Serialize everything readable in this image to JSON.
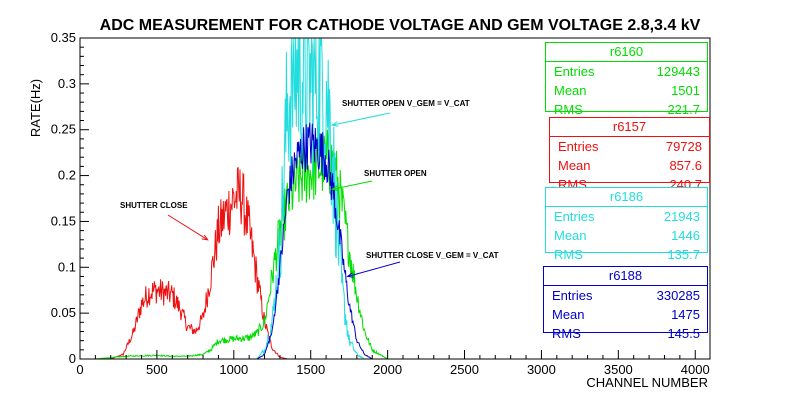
{
  "chart_data": {
    "type": "line",
    "title": "ADC MEASUREMENT FOR CATHODE VOLTAGE AND GEM VOLTAGE 2.8,3.4 kV",
    "xlabel": "CHANNEL NUMBER",
    "ylabel": "RATE(Hz)",
    "xlim": [
      0,
      4096
    ],
    "ylim": [
      0,
      0.35
    ],
    "x_ticks": [
      0,
      500,
      1000,
      1500,
      2000,
      2500,
      3000,
      3500,
      4000
    ],
    "x_tick_labels": [
      "0",
      "500",
      "1000",
      "1500",
      "2000",
      "2500",
      "3000",
      "3500",
      "4000"
    ],
    "y_ticks": [
      0,
      0.05,
      0.1,
      0.15,
      0.2,
      0.25,
      0.3,
      0.35
    ],
    "y_tick_labels": [
      "0",
      "0.05",
      "0.1",
      "0.15",
      "0.2",
      "0.25",
      "0.3",
      "0.35"
    ],
    "grid": false,
    "series": [
      {
        "name": "r6160",
        "color": "#00dd00",
        "x": [
          100,
          300,
          500,
          600,
          700,
          800,
          850,
          900,
          1000,
          1100,
          1150,
          1200,
          1250,
          1300,
          1350,
          1400,
          1450,
          1500,
          1550,
          1600,
          1650,
          1700,
          1750,
          1800,
          1850,
          1900,
          2000
        ],
        "y": [
          0,
          0.003,
          0.004,
          0.003,
          0.003,
          0.005,
          0.01,
          0.02,
          0.022,
          0.023,
          0.028,
          0.04,
          0.09,
          0.14,
          0.17,
          0.19,
          0.2,
          0.205,
          0.21,
          0.215,
          0.21,
          0.17,
          0.12,
          0.07,
          0.03,
          0.01,
          0
        ]
      },
      {
        "name": "r6157",
        "color": "#ee1111",
        "x": [
          200,
          280,
          350,
          400,
          450,
          500,
          550,
          600,
          650,
          700,
          750,
          800,
          850,
          900,
          950,
          1000,
          1050,
          1100,
          1150,
          1200,
          1250,
          1300,
          1350
        ],
        "y": [
          0,
          0.005,
          0.03,
          0.06,
          0.073,
          0.075,
          0.072,
          0.07,
          0.055,
          0.035,
          0.03,
          0.045,
          0.09,
          0.14,
          0.16,
          0.175,
          0.18,
          0.14,
          0.09,
          0.04,
          0.012,
          0.002,
          0
        ]
      },
      {
        "name": "r6186",
        "color": "#22dddd",
        "x": [
          1150,
          1200,
          1250,
          1300,
          1325,
          1350,
          1400,
          1450,
          1500,
          1550,
          1600,
          1625,
          1650,
          1700,
          1750,
          1800,
          1850
        ],
        "y": [
          0,
          0.01,
          0.04,
          0.12,
          0.2,
          0.28,
          0.32,
          0.31,
          0.3,
          0.31,
          0.3,
          0.26,
          0.2,
          0.08,
          0.02,
          0.005,
          0
        ]
      },
      {
        "name": "r6188",
        "color": "#0000cc",
        "x": [
          1150,
          1200,
          1250,
          1300,
          1350,
          1400,
          1450,
          1500,
          1550,
          1600,
          1650,
          1700,
          1750,
          1800,
          1850,
          1900
        ],
        "y": [
          0,
          0.005,
          0.03,
          0.1,
          0.18,
          0.215,
          0.23,
          0.235,
          0.23,
          0.22,
          0.18,
          0.12,
          0.06,
          0.02,
          0.005,
          0
        ]
      }
    ],
    "annotations": [
      {
        "text": "SHUTTER OPEN V_GEM = V_CAT",
        "color": "#000000",
        "arrow_color": "#22dddd",
        "arrow_to": [
          1640,
          0.255
        ]
      },
      {
        "text": "SHUTTER OPEN",
        "color": "#000000",
        "arrow_color": "#00dd00",
        "arrow_to": [
          1640,
          0.185
        ]
      },
      {
        "text": "SHUTTER CLOSE",
        "color": "#000000",
        "arrow_color": "#ee1111",
        "arrow_to": [
          830,
          0.13
        ]
      },
      {
        "text": "SHUTTER CLOSE V_GEM = V_CAT",
        "color": "#000000",
        "arrow_color": "#0000cc",
        "arrow_to": [
          1740,
          0.09
        ]
      }
    ]
  },
  "stats_boxes": [
    {
      "id": "r6160",
      "title": "r6160",
      "color": "#00dd00",
      "rows": [
        {
          "label": "Entries",
          "value": "129443"
        },
        {
          "label": "Mean",
          "value": "1501"
        },
        {
          "label": "RMS",
          "value": "221.7"
        }
      ]
    },
    {
      "id": "r6157",
      "title": "r6157",
      "color": "#ee1111",
      "rows": [
        {
          "label": "Entries",
          "value": "79728"
        },
        {
          "label": "Mean",
          "value": "857.6"
        },
        {
          "label": "RMS",
          "value": "240.7"
        }
      ]
    },
    {
      "id": "r6186",
      "title": "r6186",
      "color": "#22dddd",
      "rows": [
        {
          "label": "Entries",
          "value": "21943"
        },
        {
          "label": "Mean",
          "value": "1446"
        },
        {
          "label": "RMS",
          "value": "135.7"
        }
      ]
    },
    {
      "id": "r6188",
      "title": "r6188",
      "color": "#0000cc",
      "rows": [
        {
          "label": "Entries",
          "value": "330285"
        },
        {
          "label": "Mean",
          "value": "1475"
        },
        {
          "label": "RMS",
          "value": "145.5"
        }
      ]
    }
  ]
}
